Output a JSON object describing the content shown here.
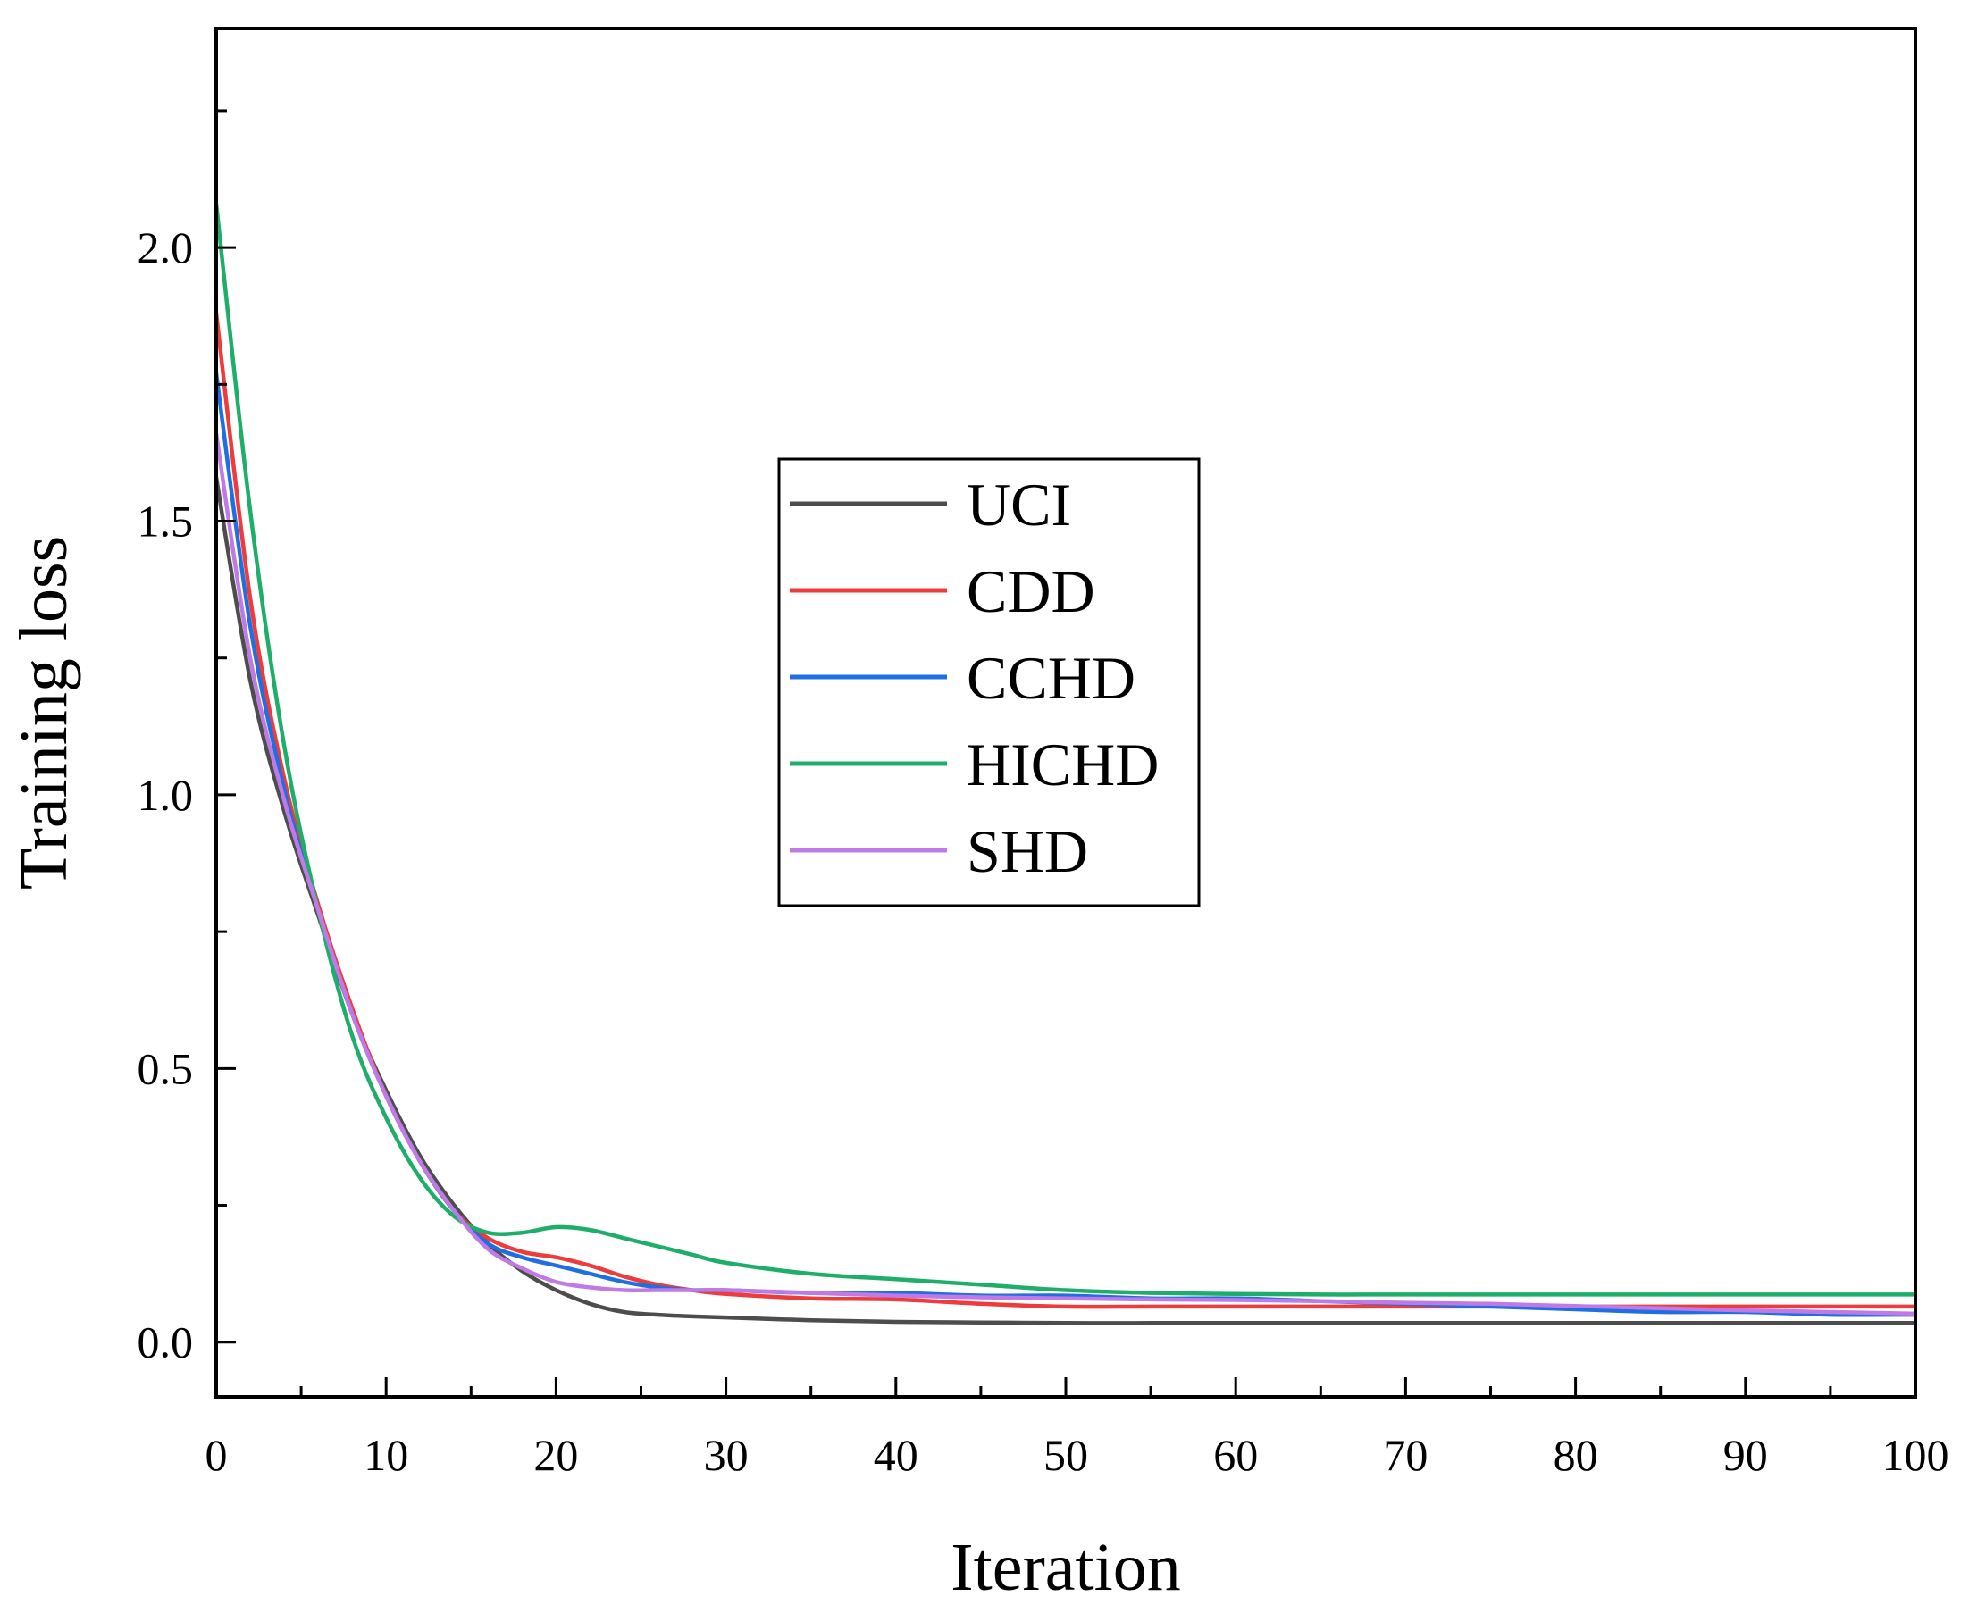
{
  "chart_data": {
    "type": "line",
    "title": "",
    "xlabel": "Iteration",
    "ylabel": "Training loss",
    "xlim": [
      0,
      100
    ],
    "ylim": [
      -0.1,
      2.4
    ],
    "xticks": [
      0,
      10,
      20,
      30,
      40,
      50,
      60,
      70,
      80,
      90,
      100
    ],
    "yticks": [
      0.0,
      0.5,
      1.0,
      1.5,
      2.0
    ],
    "xtick_labels": [
      "0",
      "10",
      "20",
      "30",
      "40",
      "50",
      "60",
      "70",
      "80",
      "90",
      "100"
    ],
    "ytick_labels": [
      "0.0",
      "0.5",
      "1.0",
      "1.5",
      "2.0"
    ],
    "grid": false,
    "legend_position": "center",
    "x": [
      0,
      2,
      4,
      6,
      8,
      10,
      12,
      14,
      16,
      18,
      20,
      22,
      24,
      26,
      28,
      30,
      35,
      40,
      45,
      50,
      55,
      60,
      65,
      70,
      75,
      80,
      85,
      90,
      95,
      100
    ],
    "series": [
      {
        "name": "UCI",
        "color": "#4d4d4d",
        "values": [
          1.58,
          1.21,
          0.97,
          0.78,
          0.6,
          0.46,
          0.34,
          0.25,
          0.18,
          0.13,
          0.095,
          0.07,
          0.055,
          0.05,
          0.047,
          0.045,
          0.04,
          0.037,
          0.036,
          0.035,
          0.035,
          0.035,
          0.035,
          0.035,
          0.035,
          0.035,
          0.035,
          0.035,
          0.035,
          0.035
        ]
      },
      {
        "name": "CDD",
        "color": "#ee3b3b",
        "values": [
          1.88,
          1.36,
          1.03,
          0.8,
          0.61,
          0.45,
          0.33,
          0.24,
          0.19,
          0.165,
          0.155,
          0.14,
          0.12,
          0.105,
          0.095,
          0.088,
          0.08,
          0.078,
          0.07,
          0.065,
          0.065,
          0.065,
          0.065,
          0.065,
          0.065,
          0.065,
          0.065,
          0.065,
          0.065,
          0.065
        ]
      },
      {
        "name": "CCHD",
        "color": "#1f6fe0",
        "values": [
          1.77,
          1.31,
          1.01,
          0.79,
          0.6,
          0.45,
          0.33,
          0.24,
          0.18,
          0.155,
          0.14,
          0.125,
          0.11,
          0.1,
          0.095,
          0.095,
          0.09,
          0.09,
          0.085,
          0.085,
          0.08,
          0.08,
          0.075,
          0.07,
          0.065,
          0.06,
          0.055,
          0.055,
          0.05,
          0.05
        ]
      },
      {
        "name": "HICHD",
        "color": "#1fae6a",
        "values": [
          2.08,
          1.52,
          1.09,
          0.79,
          0.56,
          0.41,
          0.3,
          0.23,
          0.2,
          0.2,
          0.21,
          0.205,
          0.19,
          0.175,
          0.16,
          0.145,
          0.125,
          0.115,
          0.105,
          0.095,
          0.09,
          0.088,
          0.087,
          0.087,
          0.087,
          0.087,
          0.087,
          0.087,
          0.087,
          0.087
        ]
      },
      {
        "name": "SHD",
        "color": "#c07ae6",
        "values": [
          1.66,
          1.25,
          0.99,
          0.79,
          0.6,
          0.45,
          0.33,
          0.24,
          0.17,
          0.135,
          0.11,
          0.1,
          0.095,
          0.095,
          0.095,
          0.095,
          0.09,
          0.085,
          0.082,
          0.08,
          0.078,
          0.077,
          0.075,
          0.072,
          0.07,
          0.066,
          0.062,
          0.058,
          0.055,
          0.052
        ]
      }
    ]
  }
}
